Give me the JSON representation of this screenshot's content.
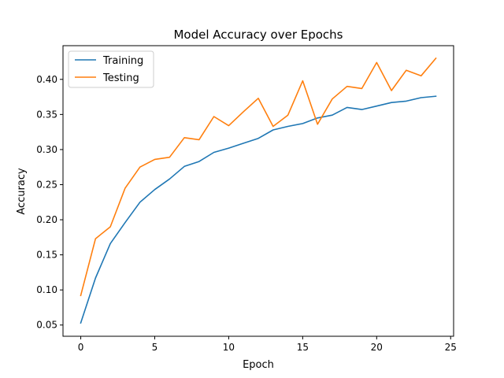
{
  "chart_data": {
    "type": "line",
    "title": "Model Accuracy over Epochs",
    "xlabel": "Epoch",
    "ylabel": "Accuracy",
    "xlim": [
      -1.2,
      25.2
    ],
    "ylim": [
      0.034,
      0.448
    ],
    "xticks": [
      0,
      5,
      10,
      15,
      20,
      25
    ],
    "yticks": [
      0.05,
      0.1,
      0.15,
      0.2,
      0.25,
      0.3,
      0.35,
      0.4
    ],
    "ytick_labels": [
      "0.05",
      "0.10",
      "0.15",
      "0.20",
      "0.25",
      "0.30",
      "0.35",
      "0.40"
    ],
    "grid": false,
    "legend_position": "top-left",
    "x": [
      0,
      1,
      2,
      3,
      4,
      5,
      6,
      7,
      8,
      9,
      10,
      11,
      12,
      13,
      14,
      15,
      16,
      17,
      18,
      19,
      20,
      21,
      22,
      23,
      24
    ],
    "series": [
      {
        "name": "Training",
        "color": "#1f77b4",
        "values": [
          0.053,
          0.117,
          0.166,
          0.196,
          0.225,
          0.243,
          0.258,
          0.276,
          0.283,
          0.296,
          0.302,
          0.309,
          0.316,
          0.328,
          0.333,
          0.337,
          0.345,
          0.349,
          0.36,
          0.357,
          0.362,
          0.367,
          0.369,
          0.374,
          0.376
        ]
      },
      {
        "name": "Testing",
        "color": "#ff7f0e",
        "values": [
          0.092,
          0.173,
          0.19,
          0.245,
          0.275,
          0.286,
          0.289,
          0.317,
          0.314,
          0.347,
          0.334,
          0.354,
          0.373,
          0.333,
          0.349,
          0.398,
          0.336,
          0.372,
          0.39,
          0.387,
          0.424,
          0.384,
          0.413,
          0.405,
          0.43
        ]
      }
    ]
  }
}
